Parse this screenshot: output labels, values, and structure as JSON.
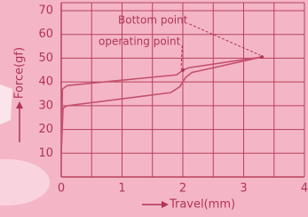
{
  "chart_data": {
    "type": "line",
    "y_label": "Force(gf)",
    "x_label": "Travel(mm)",
    "color": "#c4506e",
    "grid": true,
    "xlim": [
      0,
      4
    ],
    "xticks": [
      0,
      1,
      2,
      3,
      4
    ],
    "ylim": [
      0,
      70
    ],
    "yticks": [
      10,
      20,
      30,
      40,
      50,
      60,
      70
    ],
    "series": [
      {
        "x": [
          0,
          0.03,
          0.1,
          1.8,
          1.95,
          2.05,
          2.15,
          3.3
        ],
        "values": [
          10,
          29,
          30,
          35.5,
          38,
          42,
          44,
          50.5
        ]
      },
      {
        "x": [
          0,
          0.02,
          0.1,
          1.9,
          2.0,
          2.1,
          3.3
        ],
        "values": [
          10,
          37,
          38.5,
          43,
          45,
          46,
          50.5
        ]
      }
    ],
    "annotations": [
      {
        "text": "Bottom point",
        "x": 3.3,
        "y": 50.5
      },
      {
        "text": "operating point",
        "x": 2.0,
        "y": 45
      }
    ]
  }
}
